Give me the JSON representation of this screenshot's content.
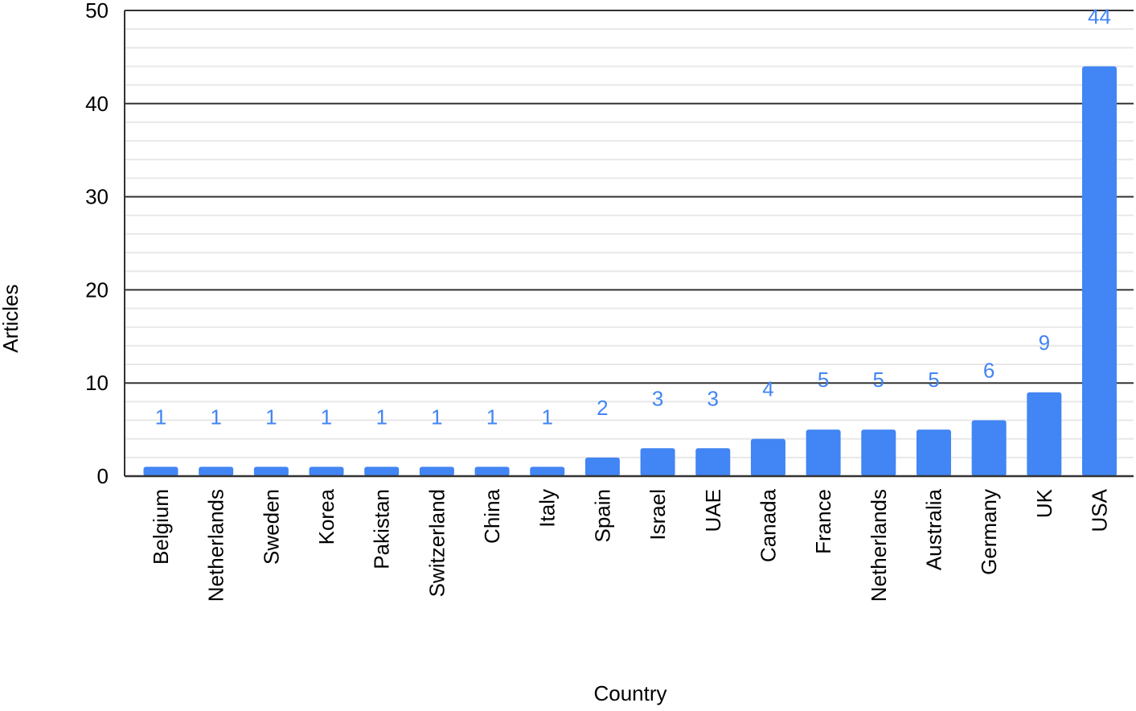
{
  "chart_data": {
    "type": "bar",
    "title": "",
    "xlabel": "Country",
    "ylabel": "Articles",
    "ylim": [
      0,
      50
    ],
    "yticks": [
      0,
      10,
      20,
      30,
      40,
      50
    ],
    "minor_grid_step": 2,
    "grid": true,
    "legend": "none",
    "bar_color": "#4285f4",
    "label_color": "#4285f4",
    "categories": [
      "Belgium",
      "Netherlands",
      "Sweden",
      "Korea",
      "Pakistan",
      "Switzerland",
      "China",
      "Italy",
      "Spain",
      "Israel",
      "UAE",
      "Canada",
      "France",
      "Netherlands",
      "Australia",
      "Germany",
      "UK",
      "USA"
    ],
    "values": [
      1,
      1,
      1,
      1,
      1,
      1,
      1,
      1,
      2,
      3,
      3,
      4,
      5,
      5,
      5,
      6,
      9,
      44
    ],
    "data_labels": [
      "1",
      "1",
      "1",
      "1",
      "1",
      "1",
      "1",
      "1",
      "2",
      "3",
      "3",
      "4",
      "5",
      "5",
      "5",
      "6",
      "9",
      "44"
    ]
  }
}
